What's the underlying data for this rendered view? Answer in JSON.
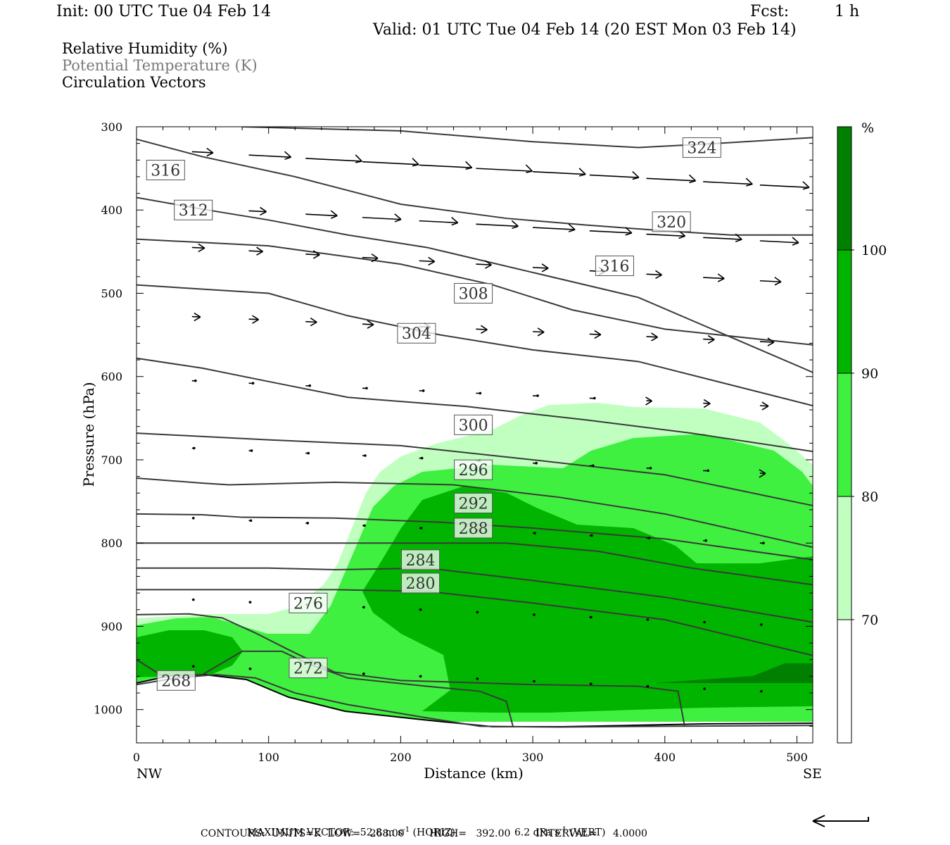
{
  "header": {
    "init": "Init: 00 UTC Tue 04 Feb 14",
    "fcst_label": "Fcst:",
    "fcst_value": "1 h",
    "valid": "Valid: 01 UTC Tue 04 Feb 14 (20 EST Mon 03 Feb 14)"
  },
  "legend": {
    "rh": "Relative Humidity (%)",
    "theta": "Potential Temperature (K)",
    "vectors": "Circulation Vectors"
  },
  "chart_data": {
    "type": "contour",
    "xlabel": "Distance (km)",
    "ylabel": "Pressure (hPa)",
    "xlim": [
      0,
      512
    ],
    "ylim": [
      300,
      1040
    ],
    "x_ticks": [
      0,
      100,
      200,
      300,
      400,
      500
    ],
    "y_ticks": [
      300,
      400,
      500,
      600,
      700,
      800,
      900,
      1000
    ],
    "x_end_labels": {
      "left": "NW",
      "right": "SE"
    },
    "colorbar": {
      "unit": "%",
      "levels": [
        70,
        80,
        90,
        100
      ],
      "colors": [
        "#ffffff",
        "#c0ffc0",
        "#40f040",
        "#00b400",
        "#008000"
      ]
    },
    "theta_contours": [
      {
        "level": 268,
        "label": "268",
        "points": [
          [
            0,
            970
          ],
          [
            30,
            962
          ],
          [
            60,
            958
          ],
          [
            90,
            962
          ],
          [
            120,
            980
          ],
          [
            160,
            994
          ],
          [
            220,
            1010
          ],
          [
            260,
            1020
          ],
          [
            320,
            1021
          ],
          [
            400,
            1020
          ],
          [
            512,
            1019
          ]
        ]
      },
      {
        "level": 272,
        "label": "272",
        "points": [
          [
            0,
            940
          ],
          [
            20,
            960
          ],
          [
            50,
            958
          ],
          [
            80,
            930
          ],
          [
            110,
            930
          ],
          [
            130,
            945
          ],
          [
            160,
            962
          ],
          [
            220,
            972
          ],
          [
            260,
            978
          ],
          [
            280,
            990
          ],
          [
            285,
            1020
          ]
        ]
      },
      {
        "level": 276,
        "label": "276",
        "points": [
          [
            0,
            886
          ],
          [
            40,
            885
          ],
          [
            65,
            890
          ],
          [
            90,
            908
          ],
          [
            115,
            928
          ],
          [
            150,
            955
          ],
          [
            200,
            965
          ],
          [
            300,
            970
          ],
          [
            380,
            972
          ],
          [
            410,
            978
          ],
          [
            415,
            1020
          ]
        ]
      },
      {
        "level": 280,
        "label": "280",
        "points": [
          [
            0,
            856
          ],
          [
            100,
            856
          ],
          [
            150,
            856
          ],
          [
            220,
            858
          ],
          [
            300,
            872
          ],
          [
            400,
            892
          ],
          [
            512,
            935
          ]
        ]
      },
      {
        "level": 284,
        "label": "284",
        "points": [
          [
            0,
            830
          ],
          [
            100,
            830
          ],
          [
            150,
            832
          ],
          [
            220,
            830
          ],
          [
            300,
            845
          ],
          [
            400,
            865
          ],
          [
            512,
            895
          ]
        ]
      },
      {
        "level": 288,
        "label": "288",
        "points": [
          [
            0,
            800
          ],
          [
            100,
            800
          ],
          [
            200,
            800
          ],
          [
            280,
            800
          ],
          [
            350,
            810
          ],
          [
            420,
            830
          ],
          [
            512,
            850
          ]
        ]
      },
      {
        "level": 292,
        "label": "292",
        "points": [
          [
            0,
            765
          ],
          [
            50,
            766
          ],
          [
            80,
            769
          ],
          [
            150,
            770
          ],
          [
            230,
            775
          ],
          [
            300,
            782
          ],
          [
            400,
            795
          ],
          [
            512,
            820
          ]
        ]
      },
      {
        "level": 296,
        "label": "296",
        "points": [
          [
            0,
            722
          ],
          [
            50,
            728
          ],
          [
            70,
            730
          ],
          [
            150,
            727
          ],
          [
            240,
            730
          ],
          [
            320,
            745
          ],
          [
            400,
            765
          ],
          [
            512,
            805
          ]
        ]
      },
      {
        "level": 300,
        "label": "300",
        "points": [
          [
            0,
            668
          ],
          [
            100,
            676
          ],
          [
            200,
            683
          ],
          [
            300,
            700
          ],
          [
            400,
            718
          ],
          [
            512,
            755
          ]
        ]
      },
      {
        "level": 304,
        "label": "304",
        "points": [
          [
            0,
            578
          ],
          [
            50,
            590
          ],
          [
            100,
            606
          ],
          [
            160,
            625
          ],
          [
            250,
            636
          ],
          [
            340,
            652
          ],
          [
            420,
            668
          ],
          [
            512,
            690
          ]
        ]
      },
      {
        "level": 308,
        "label": "308",
        "points": [
          [
            0,
            490
          ],
          [
            100,
            500
          ],
          [
            160,
            527
          ],
          [
            230,
            550
          ],
          [
            300,
            568
          ],
          [
            380,
            582
          ],
          [
            512,
            635
          ]
        ]
      },
      {
        "level": 312,
        "label": "312",
        "points": [
          [
            0,
            435
          ],
          [
            100,
            443
          ],
          [
            200,
            465
          ],
          [
            270,
            490
          ],
          [
            330,
            520
          ],
          [
            400,
            543
          ],
          [
            512,
            562
          ]
        ]
      },
      {
        "level": 316,
        "label": "316",
        "points": [
          [
            0,
            385
          ],
          [
            50,
            399
          ],
          [
            100,
            412
          ],
          [
            160,
            430
          ],
          [
            220,
            445
          ],
          [
            300,
            475
          ],
          [
            380,
            505
          ],
          [
            512,
            595
          ]
        ]
      },
      {
        "level": 320,
        "label": "320",
        "points": [
          [
            0,
            315
          ],
          [
            50,
            336
          ],
          [
            120,
            360
          ],
          [
            200,
            393
          ],
          [
            280,
            410
          ],
          [
            340,
            418
          ],
          [
            400,
            425
          ],
          [
            450,
            430
          ],
          [
            512,
            430
          ]
        ]
      },
      {
        "level": 324,
        "label": "324",
        "points": [
          [
            80,
            300
          ],
          [
            200,
            305
          ],
          [
            300,
            318
          ],
          [
            380,
            325
          ],
          [
            440,
            320
          ],
          [
            512,
            313
          ]
        ]
      }
    ],
    "vector_scale": {
      "max_horizontal": "52.8 m s⁻¹ (HORIZ)",
      "max_vertical": "6.2 dPa s⁻¹ (VERT)"
    },
    "contour_summary": {
      "units": "K",
      "low": "268.00",
      "high": "392.00",
      "interval": "4.0000"
    }
  },
  "footer": {
    "line1_a": "MAXIMUM VECTOR:  52.8 m s",
    "line1_b": " (HORIZ)",
    "line1_c": "6.2 dPa s",
    "line1_d": " (VERT)",
    "sup": "-1",
    "line2": "CONTOURS:  UNITS=K  LOW=   268.00        HIGH=   392.00        INTERVAL=     4.0000"
  }
}
